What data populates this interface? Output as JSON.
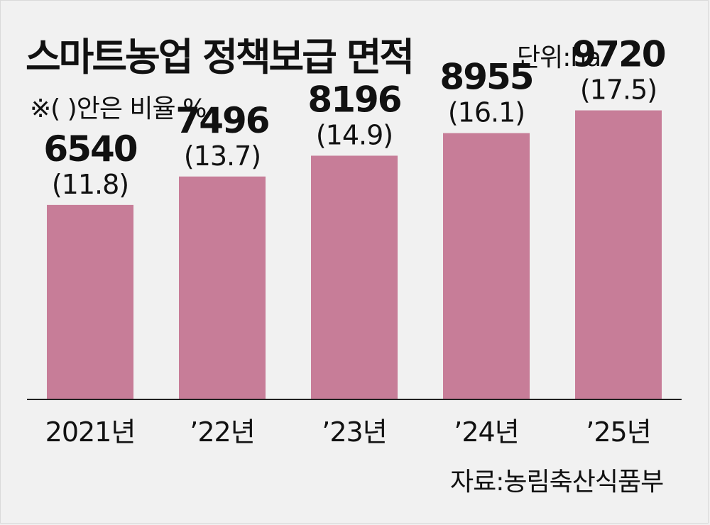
{
  "title": "스마트농업 정책보급 면적",
  "unit_label": "단위:ha",
  "note": "※(    )안은 비율 %",
  "source": "자료:농림축산식품부",
  "colors": {
    "bar": "#c77d98",
    "axis": "#222222",
    "background": "#f1f1f1"
  },
  "chart_data": {
    "type": "bar",
    "title": "스마트농업 정책보급 면적",
    "categories": [
      "2021년",
      "’22년",
      "’23년",
      "’24년",
      "’25년"
    ],
    "values": [
      6540,
      7496,
      8196,
      8955,
      9720
    ],
    "ratio_labels": [
      "(11.8)",
      "(13.7)",
      "(14.9)",
      "(16.1)",
      "(17.5)"
    ],
    "value_labels": [
      "6540",
      "7496",
      "8196",
      "8955",
      "9720"
    ],
    "ylabel": "",
    "xlabel": "",
    "ylim": [
      0,
      12000
    ],
    "grid": false,
    "legend": "none"
  }
}
